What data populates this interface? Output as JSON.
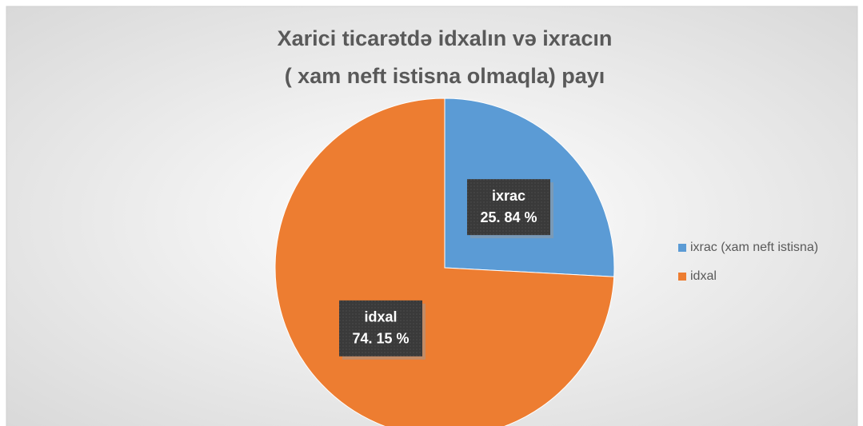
{
  "chart_data": {
    "type": "pie",
    "title": [
      "Xarici ticarətdə idxalın və ixracın",
      "( xam neft istisna olmaqla) payı"
    ],
    "categories": [
      "ixrac (xam neft istisna)",
      "idxal"
    ],
    "label_names": [
      "ixrac",
      "idxal"
    ],
    "values": [
      25.84,
      74.15
    ],
    "value_labels": [
      "25. 84 %",
      "74. 15 %"
    ],
    "colors": [
      "#5b9bd5",
      "#ed7d31"
    ],
    "legend": "right"
  }
}
